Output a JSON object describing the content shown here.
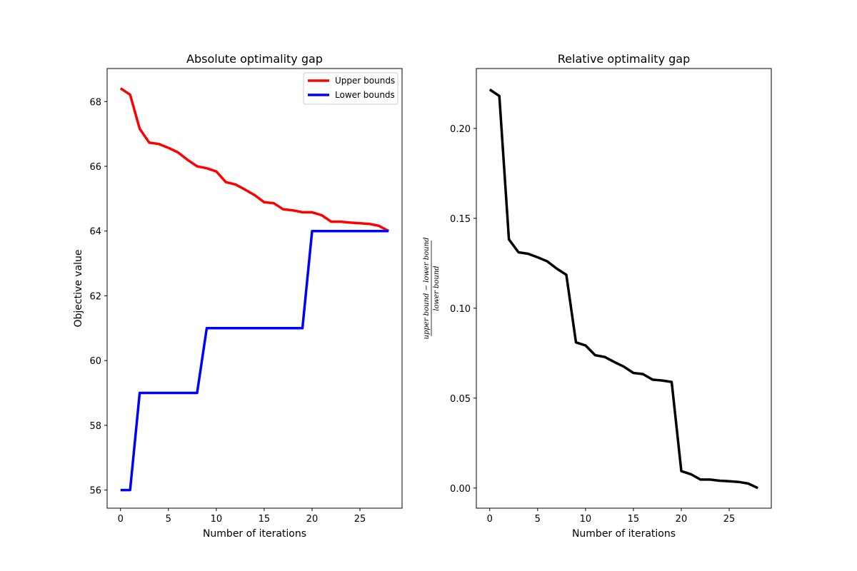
{
  "chart_data": [
    {
      "type": "line",
      "title": "Absolute optimality gap",
      "xlabel": "Number of iterations",
      "ylabel": "Objective value",
      "xlim": [
        -1.4,
        29.4
      ],
      "ylim": [
        55.44,
        69.02
      ],
      "x_ticks": [
        0,
        5,
        10,
        15,
        20,
        25
      ],
      "y_ticks": [
        56,
        58,
        60,
        62,
        64,
        66,
        68
      ],
      "grid": false,
      "legend_position": "top-right",
      "x": [
        0,
        1,
        2,
        3,
        4,
        5,
        6,
        7,
        8,
        9,
        10,
        11,
        12,
        13,
        14,
        15,
        16,
        17,
        18,
        19,
        20,
        21,
        22,
        23,
        24,
        25,
        26,
        27,
        28
      ],
      "series": [
        {
          "name": "Upper bounds",
          "color": "#ff0000",
          "values": [
            68.41,
            68.21,
            67.16,
            66.73,
            66.69,
            66.57,
            66.43,
            66.2,
            66.0,
            65.94,
            65.84,
            65.51,
            65.44,
            65.28,
            65.11,
            64.89,
            64.86,
            64.67,
            64.64,
            64.58,
            64.58,
            64.49,
            64.29,
            64.29,
            64.26,
            64.24,
            64.22,
            64.16,
            64.0
          ]
        },
        {
          "name": "Lower bounds",
          "color": "#0000ff",
          "values": [
            56,
            56,
            59,
            59,
            59,
            59,
            59,
            59,
            59,
            61,
            61,
            61,
            61,
            61,
            61,
            61,
            61,
            61,
            61,
            61,
            64,
            64,
            64,
            64,
            64,
            64,
            64,
            64,
            64
          ]
        }
      ]
    },
    {
      "type": "line",
      "title": "Relative optimality gap",
      "xlabel": "Number of iterations",
      "ylabel_numerator": "upper bound − lower bound",
      "ylabel_denominator": "lower bound",
      "xlim": [
        -1.4,
        29.4
      ],
      "ylim": [
        -0.0112,
        0.2333
      ],
      "x_ticks": [
        0,
        5,
        10,
        15,
        20,
        25
      ],
      "y_ticks": [
        "0.00",
        "0.05",
        "0.10",
        "0.15",
        "0.20"
      ],
      "grid": false,
      "x": [
        0,
        1,
        2,
        3,
        4,
        5,
        6,
        7,
        8,
        9,
        10,
        11,
        12,
        13,
        14,
        15,
        16,
        17,
        18,
        19,
        20,
        21,
        22,
        23,
        24,
        25,
        26,
        27,
        28
      ],
      "series": [
        {
          "color": "#000000",
          "values": [
            0.2216,
            0.218,
            0.1383,
            0.1311,
            0.1303,
            0.1283,
            0.1261,
            0.122,
            0.1186,
            0.081,
            0.0793,
            0.0739,
            0.0729,
            0.0701,
            0.0675,
            0.064,
            0.0634,
            0.0603,
            0.0598,
            0.059,
            0.0094,
            0.0077,
            0.0047,
            0.0047,
            0.0041,
            0.0038,
            0.0034,
            0.0025,
            0.0
          ]
        }
      ]
    }
  ]
}
